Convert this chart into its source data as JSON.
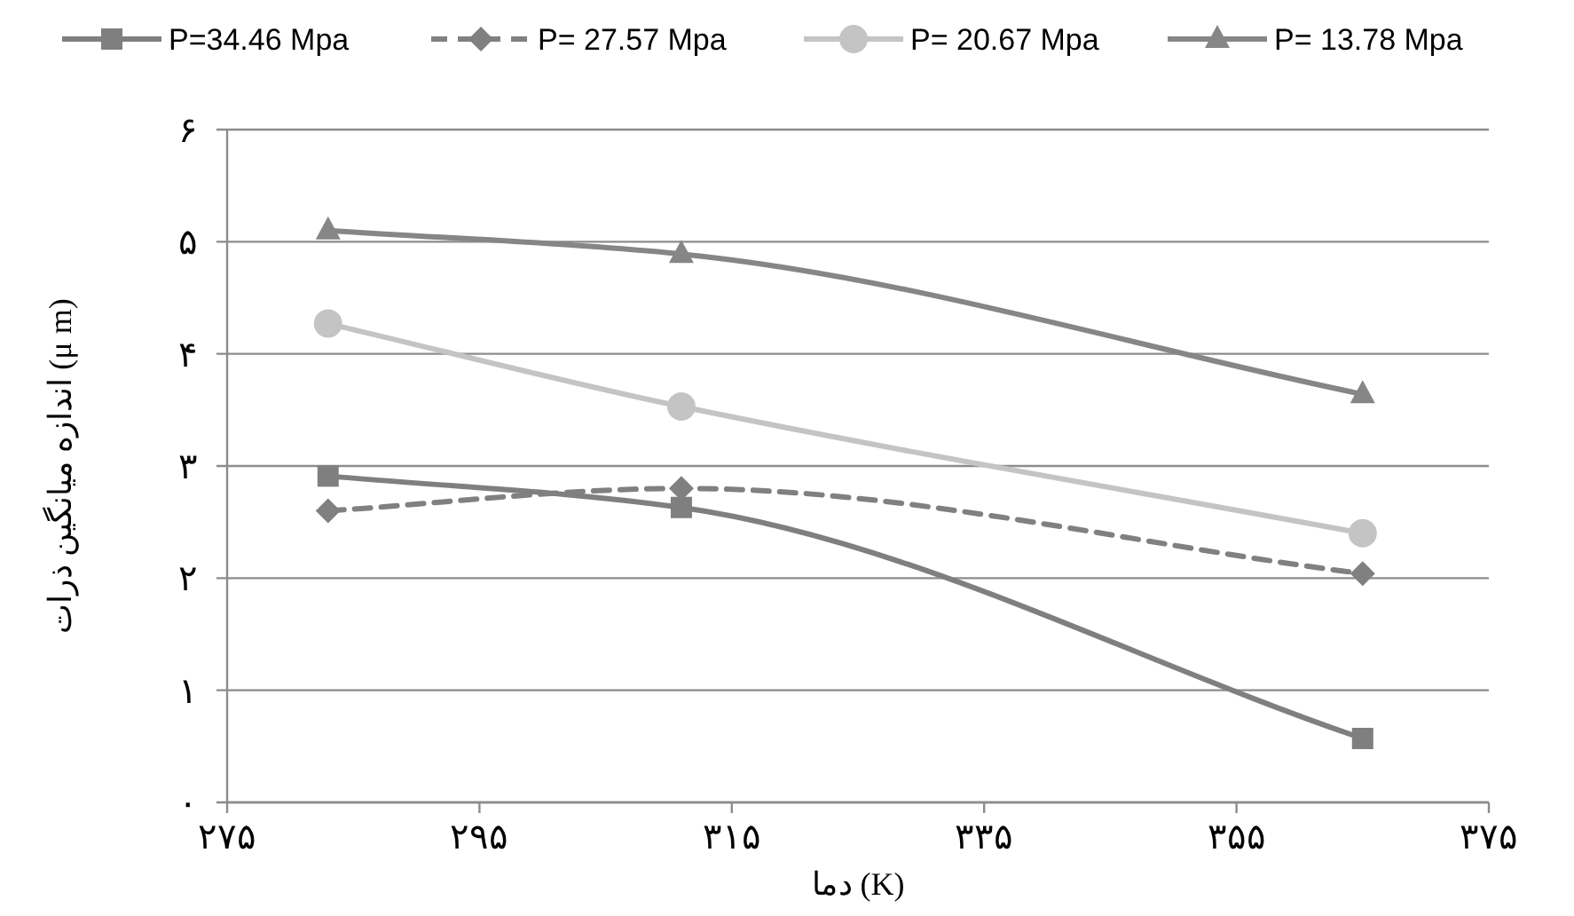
{
  "chart_data": {
    "type": "line",
    "xlabel": "دما (K)",
    "ylabel": "اندازه میانگین ذرات (μ m)",
    "x": [
      283,
      311,
      365
    ],
    "series": [
      {
        "name": "P=34.46 Mpa",
        "color": "#7f7f7f",
        "values": [
          2.91,
          2.63,
          0.57
        ],
        "marker": "square",
        "line_style": "solid"
      },
      {
        "name": "P= 27.57 Mpa",
        "color": "#808080",
        "values": [
          2.6,
          2.8,
          2.04
        ],
        "marker": "diamond",
        "line_style": "dashed"
      },
      {
        "name": "P= 20.67 Mpa",
        "color": "#c4c4c4",
        "values": [
          4.27,
          3.53,
          2.4
        ],
        "marker": "circle",
        "line_style": "solid"
      },
      {
        "name": "P= 13.78 Mpa",
        "color": "#868686",
        "values": [
          5.1,
          4.89,
          3.64
        ],
        "marker": "triangle",
        "line_style": "solid"
      }
    ],
    "xlim": [
      275,
      375
    ],
    "xticks": [
      {
        "value": 275,
        "label": "۲۷۵"
      },
      {
        "value": 295,
        "label": "۲۹۵"
      },
      {
        "value": 315,
        "label": "۳۱۵"
      },
      {
        "value": 335,
        "label": "۳۳۵"
      },
      {
        "value": 355,
        "label": "۳۵۵"
      },
      {
        "value": 375,
        "label": "۳۷۵"
      }
    ],
    "ylim": [
      0,
      6
    ],
    "yticks": [
      {
        "value": 0,
        "label": "۰"
      },
      {
        "value": 1,
        "label": "۱"
      },
      {
        "value": 2,
        "label": "۲"
      },
      {
        "value": 3,
        "label": "۳"
      },
      {
        "value": 4,
        "label": "۴"
      },
      {
        "value": 5,
        "label": "۵"
      },
      {
        "value": 6,
        "label": "۶"
      }
    ],
    "grid": "y",
    "legend": "top"
  }
}
